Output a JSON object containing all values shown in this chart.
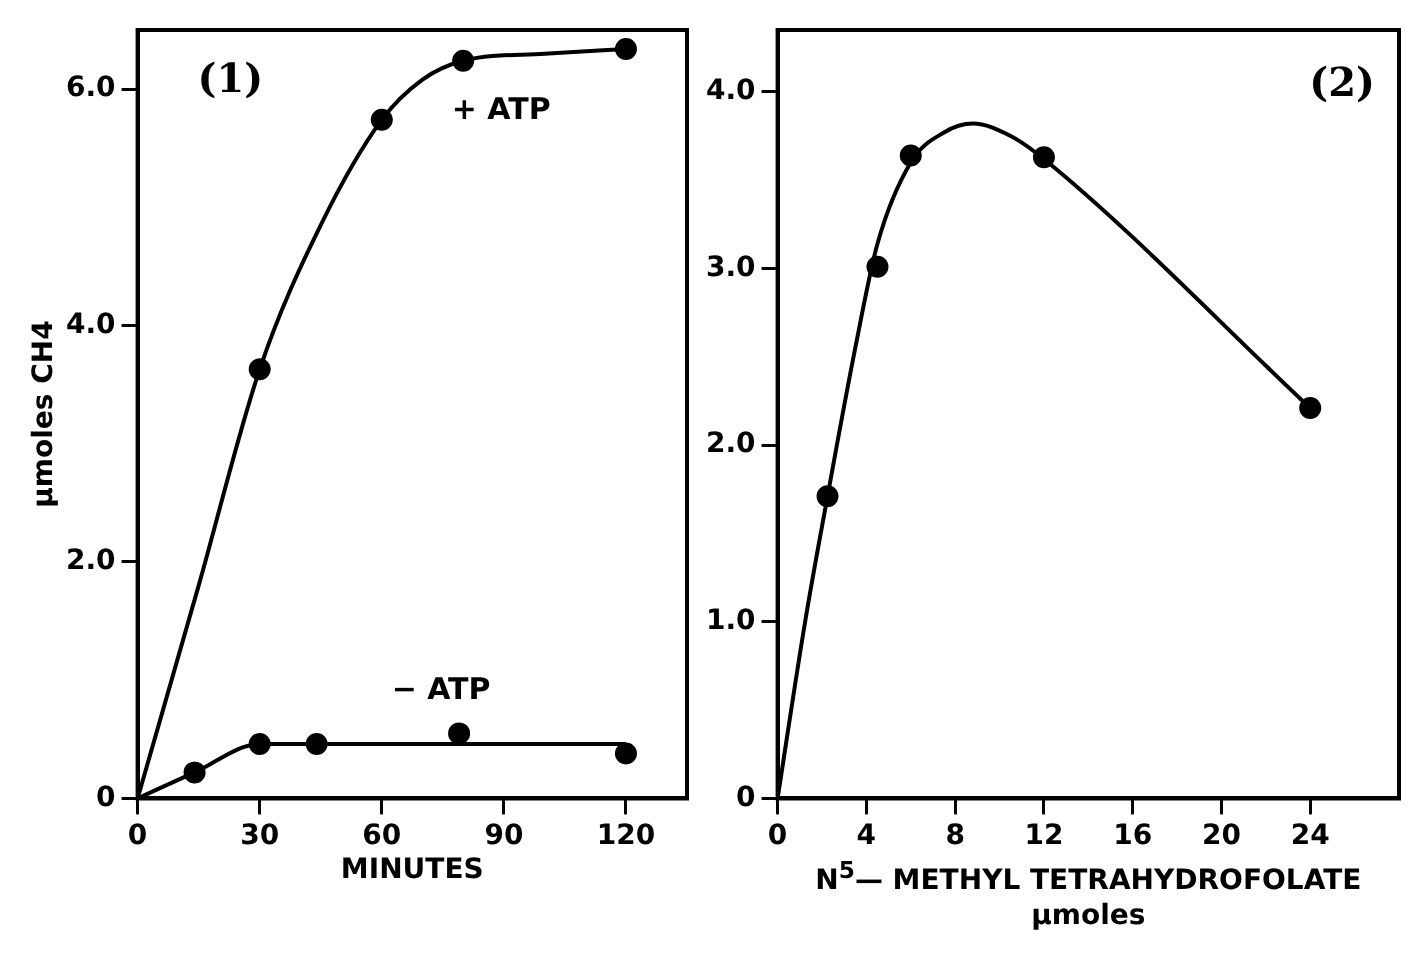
{
  "chart_data": [
    {
      "type": "scatter",
      "ylabel": "μmoles CH4",
      "xlabel": "MINUTES",
      "xlim": [
        0,
        135
      ],
      "xticks": [
        0,
        30,
        60,
        90,
        120
      ],
      "ylim": [
        0,
        6.5
      ],
      "yticks": [
        0,
        {
          "value": 2,
          "label": "2.0"
        },
        {
          "value": 4,
          "label": "4.0"
        },
        {
          "value": 6,
          "label": "6.0"
        }
      ],
      "grid": false,
      "legend": false,
      "annotations": [
        "(1)"
      ],
      "series": [
        {
          "type": "line",
          "marker": "none",
          "color": "#000000",
          "x": [
            0,
            15,
            30,
            45,
            60,
            70,
            80,
            100,
            120
          ],
          "values": [
            0,
            1.8,
            3.63,
            4.85,
            5.74,
            6.08,
            6.24,
            6.3,
            6.34
          ]
        },
        {
          "type": "scatter",
          "name": "+ ATP",
          "marker": "circle",
          "color": "#000000",
          "x": [
            30,
            60,
            80,
            120
          ],
          "values": [
            3.63,
            5.74,
            6.24,
            6.34
          ]
        },
        {
          "type": "line",
          "marker": "none",
          "color": "#000000",
          "x": [
            0,
            14,
            30,
            120
          ],
          "values": [
            0,
            0.22,
            0.46,
            0.46
          ]
        },
        {
          "type": "scatter",
          "name": "− ATP",
          "marker": "circle",
          "color": "#000000",
          "x": [
            14,
            30,
            44,
            79,
            120
          ],
          "values": [
            0.22,
            0.46,
            0.46,
            0.55,
            0.38
          ]
        }
      ]
    },
    {
      "type": "scatter",
      "xlabel": "N$^{5}$— METHYL TETRAHYDROFOLATE\nμmoles",
      "xlim": [
        0,
        28
      ],
      "xticks": [
        0,
        4,
        8,
        12,
        16,
        20,
        24
      ],
      "ylim": [
        0,
        4.35
      ],
      "yticks": [
        0,
        {
          "value": 1,
          "label": "1.0"
        },
        {
          "value": 2,
          "label": "2.0"
        },
        {
          "value": 3,
          "label": "3.0"
        },
        {
          "value": 4,
          "label": "4.0"
        }
      ],
      "grid": false,
      "legend": false,
      "annotations": [
        "(2)"
      ],
      "series": [
        {
          "type": "line",
          "marker": "none",
          "color": "#000000",
          "x": [
            0,
            1.24,
            2.25,
            3.5,
            4.5,
            6,
            7.5,
            8.8,
            10.5,
            12,
            24
          ],
          "values": [
            0,
            1.0,
            1.71,
            2.55,
            3.14,
            3.6,
            3.77,
            3.82,
            3.75,
            3.62,
            2.21
          ]
        },
        {
          "type": "scatter",
          "marker": "circle",
          "color": "#000000",
          "x": [
            2.25,
            4.5,
            6,
            12,
            24
          ],
          "values": [
            1.71,
            3.01,
            3.64,
            3.63,
            2.21
          ]
        }
      ]
    }
  ]
}
